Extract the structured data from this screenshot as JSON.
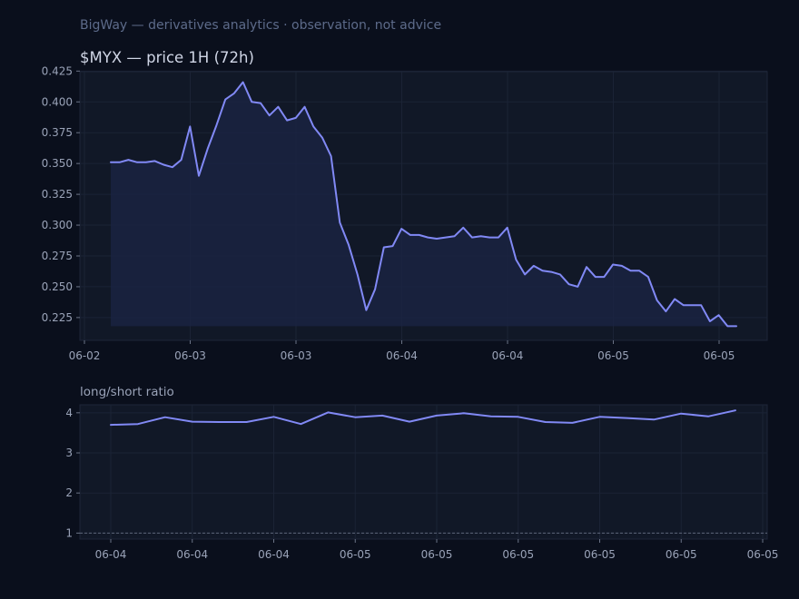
{
  "header": {
    "caption": "BigWay — derivatives analytics · observation, not advice"
  },
  "colors": {
    "background": "#0a0f1c",
    "panel": "#111827",
    "line": "#8189f5",
    "tick_text": "#9aa3b8"
  },
  "chart_data": [
    {
      "type": "area",
      "title": "$MYX — price 1H (72h)",
      "xlabel": "",
      "ylabel": "",
      "x_tick_labels": [
        "06-02",
        "06-03",
        "06-03",
        "06-04",
        "06-04",
        "06-05",
        "06-05"
      ],
      "y_ticks": [
        0.225,
        0.25,
        0.275,
        0.3,
        0.325,
        0.35,
        0.375,
        0.4,
        0.425
      ],
      "y_tick_labels": [
        "0.225",
        "0.250",
        "0.275",
        "0.300",
        "0.325",
        "0.350",
        "0.375",
        "0.400",
        "0.425"
      ],
      "ylim": [
        0.2065,
        0.4245
      ],
      "grid": true,
      "values": [
        0.351,
        0.351,
        0.353,
        0.351,
        0.351,
        0.352,
        0.349,
        0.347,
        0.353,
        0.38,
        0.34,
        0.362,
        0.381,
        0.402,
        0.407,
        0.416,
        0.4,
        0.399,
        0.389,
        0.396,
        0.385,
        0.387,
        0.396,
        0.38,
        0.371,
        0.356,
        0.302,
        0.284,
        0.26,
        0.231,
        0.248,
        0.282,
        0.283,
        0.297,
        0.292,
        0.292,
        0.29,
        0.289,
        0.29,
        0.291,
        0.298,
        0.29,
        0.291,
        0.29,
        0.29,
        0.298,
        0.272,
        0.26,
        0.267,
        0.263,
        0.262,
        0.26,
        0.252,
        0.25,
        0.266,
        0.258,
        0.258,
        0.268,
        0.267,
        0.263,
        0.263,
        0.258,
        0.239,
        0.23,
        0.24,
        0.235,
        0.235,
        0.235,
        0.222,
        0.227,
        0.218,
        0.218
      ]
    },
    {
      "type": "line",
      "title": "long/short ratio",
      "xlabel": "",
      "ylabel": "",
      "x_tick_labels": [
        "06-04",
        "06-04",
        "06-04",
        "06-05",
        "06-05",
        "06-05",
        "06-05",
        "06-05",
        "06-05"
      ],
      "y_ticks": [
        1,
        2,
        3,
        4
      ],
      "y_tick_labels": [
        "1",
        "2",
        "3",
        "4"
      ],
      "ylim": [
        0.85,
        4.2
      ],
      "reference_line": 1,
      "grid": true,
      "values": [
        3.7,
        3.72,
        3.89,
        3.78,
        3.77,
        3.77,
        3.9,
        3.72,
        4.01,
        3.89,
        3.93,
        3.78,
        3.93,
        3.99,
        3.91,
        3.9,
        3.77,
        3.75,
        3.9,
        3.87,
        3.83,
        3.98,
        3.91,
        4.06
      ]
    }
  ]
}
